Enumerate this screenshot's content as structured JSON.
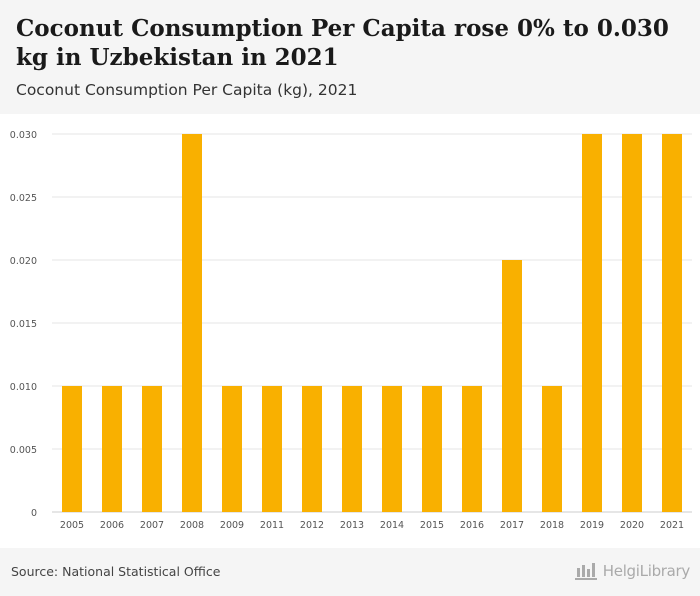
{
  "header": {
    "title": "Coconut Consumption Per Capita rose 0% to 0.030 kg in Uzbekistan in 2021",
    "subtitle": "Coconut Consumption Per Capita (kg), 2021"
  },
  "footer": {
    "source": "Source: National Statistical Office",
    "brand": "HelgiLibrary"
  },
  "colors": {
    "bar": "#f9b000",
    "grid": "#e6e6e6",
    "axis_text": "#555555",
    "header_bg": "#f5f5f5"
  },
  "chart_data": {
    "type": "bar",
    "title": "Coconut Consumption Per Capita (kg), 2021",
    "xlabel": "",
    "ylabel": "",
    "categories": [
      "2005",
      "2006",
      "2007",
      "2008",
      "2009",
      "2011",
      "2012",
      "2013",
      "2014",
      "2015",
      "2016",
      "2017",
      "2018",
      "2019",
      "2020",
      "2021"
    ],
    "values": [
      0.01,
      0.01,
      0.01,
      0.03,
      0.01,
      0.01,
      0.01,
      0.01,
      0.01,
      0.01,
      0.01,
      0.02,
      0.01,
      0.03,
      0.03,
      0.03
    ],
    "ylim": [
      0,
      0.03
    ],
    "yticks": [
      0,
      0.005,
      0.01,
      0.015,
      0.02,
      0.025,
      0.03
    ],
    "ytick_labels": [
      "0",
      "0.005",
      "0.010",
      "0.015",
      "0.020",
      "0.025",
      "0.030"
    ],
    "grid": true,
    "legend": "none"
  }
}
